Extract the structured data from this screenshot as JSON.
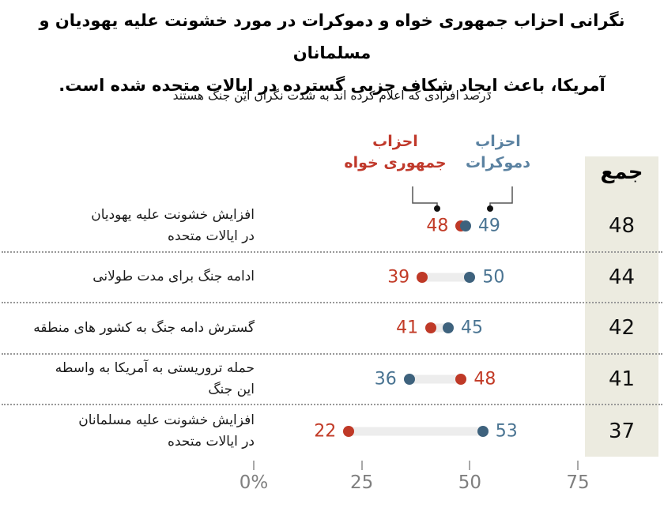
{
  "title": {
    "line1": "نگرانی احزاب جمهوری خواه و دموکرات در مورد خشونت علیه یهودیان و مسلمانان",
    "line2": "آمریکا، باعث ایجاد شکاف حزبی گسترده در ایالات متحده شده است."
  },
  "subtitle": "درصد افرادی که اعلام کرده اند به شدت نگران این جنگ هستند",
  "legend": {
    "republican": {
      "line1": "احزاب",
      "line2": "جمهوری خواه",
      "text_color": "#c0392b"
    },
    "democrat": {
      "line1": "احزاب",
      "line2": "دموکرات",
      "text_color": "#5b82a1"
    }
  },
  "colors": {
    "rep_dot": "#bf3927",
    "dem_dot": "#3e627d",
    "rep_value_text": "#c23b27",
    "dem_value_text": "#4a7492",
    "track": "#ededed",
    "beige_column": "#ecebe0",
    "separator": "#999999",
    "connector": "#555555",
    "connector_dot": "#111111"
  },
  "total_column": {
    "header": "جمع"
  },
  "axis": {
    "tick_labels": [
      "0%",
      "25",
      "50",
      "75"
    ],
    "tick_values": [
      0,
      25,
      50,
      75
    ]
  },
  "rows": [
    {
      "label_lines": [
        "افزایش خشونت علیه یهودیان",
        "در ایالات متحده"
      ],
      "rep": 48,
      "dem": 49,
      "total": 48
    },
    {
      "label_lines": [
        "ادامه جنگ برای مدت طولانی"
      ],
      "rep": 39,
      "dem": 50,
      "total": 44
    },
    {
      "label_lines": [
        "گسترش دامه جنگ به کشور های منطقه"
      ],
      "rep": 41,
      "dem": 45,
      "total": 42
    },
    {
      "label_lines": [
        "حمله تروریستی به آمریکا به واسطه",
        "این جنگ"
      ],
      "rep": 48,
      "dem": 36,
      "total": 41
    },
    {
      "label_lines": [
        "افزایش خشونت علیه مسلمانان",
        "در ایالات متحده"
      ],
      "rep": 22,
      "dem": 53,
      "total": 37
    }
  ],
  "chart_data": {
    "type": "scatter",
    "variant": "dumbbell-dot-plot",
    "title": "نگرانی احزاب جمهوری خواه و دموکرات در مورد خشونت علیه یهودیان و مسلمانان آمریکا، باعث ایجاد شکاف حزبی گسترده در ایالات متحده شده است.",
    "subtitle": "درصد افرادی که اعلام کرده اند به شدت نگران این جنگ هستند",
    "categories": [
      "افزایش خشونت علیه یهودیان در ایالات متحده",
      "ادامه جنگ برای مدت طولانی",
      "گسترش دامه جنگ به کشور های منطقه",
      "حمله تروریستی به آمریکا به واسطه این جنگ",
      "افزایش خشونت علیه مسلمانان در ایالات متحده"
    ],
    "series": [
      {
        "name": "احزاب جمهوری خواه",
        "color": "#bf3927",
        "values": [
          48,
          39,
          41,
          48,
          22
        ]
      },
      {
        "name": "احزاب دموکرات",
        "color": "#3e627d",
        "values": [
          49,
          50,
          45,
          36,
          53
        ]
      }
    ],
    "totals": {
      "header": "جمع",
      "values": [
        48,
        44,
        42,
        41,
        37
      ]
    },
    "xlabel": "",
    "ylabel": "",
    "xlim": [
      0,
      80
    ],
    "x_ticks": [
      0,
      25,
      50,
      75
    ],
    "grid": false,
    "legend_position": "top"
  }
}
